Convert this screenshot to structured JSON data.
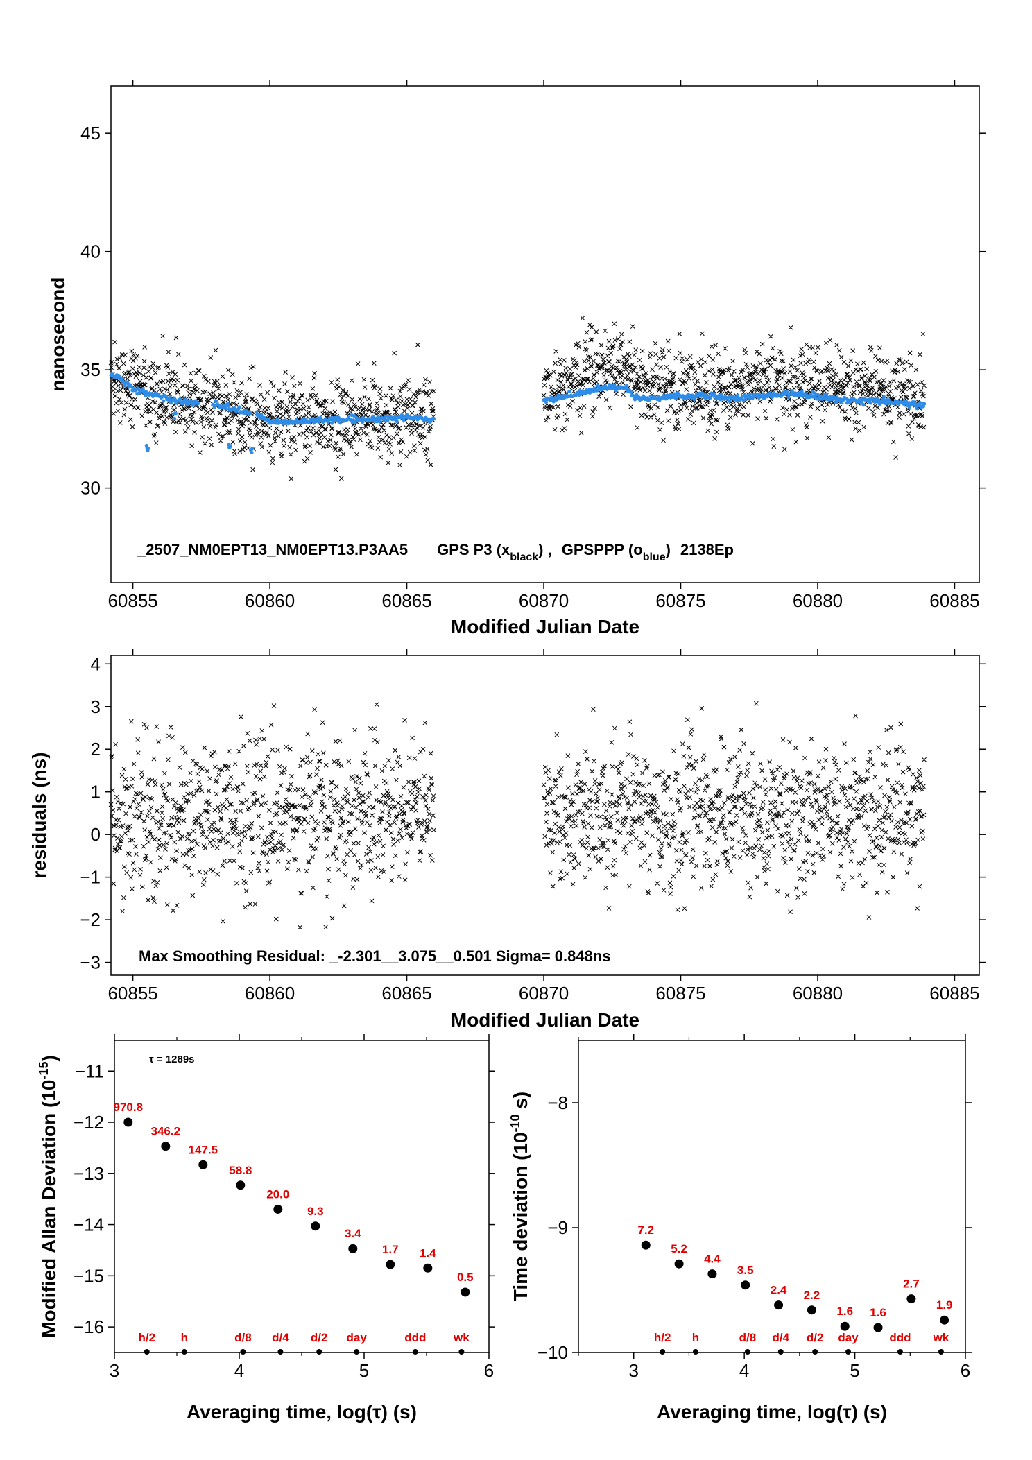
{
  "chart_data": [
    {
      "type": "scatter",
      "xlabel": "Modified Julian Date",
      "ylabel": "nanosecond",
      "xlim": [
        60854.2,
        60885.9
      ],
      "ylim": [
        26,
        47
      ],
      "xticks": [
        60855,
        60860,
        60865,
        60870,
        60875,
        60880,
        60885
      ],
      "yticks": [
        30,
        35,
        40,
        45
      ],
      "grid": false,
      "annotation": {
        "file": "_2507_NM0EPT13_NM0EPT13.P3AA5",
        "gps_label": "GPS P3 (x",
        "gps_sub": "black",
        "sep": ") ,",
        "ppp_label": "GPSPPP (o",
        "ppp_sub": "blue",
        "ppp_end": ")",
        "tail": "2138Ep"
      },
      "series": [
        {
          "name": "GPS P3",
          "color": "#000000",
          "marker": "x",
          "segments": [
            [
              60854.2,
              60866.0
            ],
            [
              60870.0,
              60883.9
            ]
          ],
          "trend": [
            [
              60854.2,
              34.8
            ],
            [
              60855.0,
              34.2
            ],
            [
              60856.0,
              33.7
            ],
            [
              60857.0,
              33.6
            ],
            [
              60858.0,
              33.5
            ],
            [
              60859.0,
              33.2
            ],
            [
              60860.0,
              32.9
            ],
            [
              60862.0,
              32.9
            ],
            [
              60864.0,
              33.0
            ],
            [
              60866.0,
              33.0
            ],
            [
              60870.0,
              33.9
            ],
            [
              60871.0,
              34.5
            ],
            [
              60872.0,
              35.1
            ],
            [
              60873.0,
              34.9
            ],
            [
              60874.0,
              34.3
            ],
            [
              60876.0,
              34.1
            ],
            [
              60878.0,
              34.2
            ],
            [
              60880.0,
              34.3
            ],
            [
              60882.0,
              34.0
            ],
            [
              60883.9,
              33.8
            ]
          ],
          "scatter_sd": 0.85
        },
        {
          "name": "GPSPPP",
          "color": "#2f8de8",
          "marker": "o",
          "curve": [
            [
              60854.2,
              34.8
            ],
            [
              60854.5,
              34.7
            ],
            [
              60855.0,
              34.2
            ],
            [
              60855.5,
              34.0
            ],
            [
              60856.0,
              33.9
            ],
            [
              60856.5,
              33.7
            ],
            [
              60857.0,
              33.6
            ],
            [
              60857.3,
              33.6
            ],
            [
              60858.0,
              33.5
            ],
            [
              60858.5,
              33.4
            ],
            [
              60859.0,
              33.2
            ],
            [
              60859.5,
              33.1
            ],
            [
              60860.0,
              32.8
            ],
            [
              60861.0,
              32.8
            ],
            [
              60862.0,
              32.9
            ],
            [
              60863.0,
              32.9
            ],
            [
              60864.0,
              32.9
            ],
            [
              60865.0,
              33.0
            ],
            [
              60866.0,
              32.9
            ],
            [
              60870.0,
              33.7
            ],
            [
              60871.0,
              33.9
            ],
            [
              60872.0,
              34.2
            ],
            [
              60873.0,
              34.3
            ],
            [
              60873.3,
              33.8
            ],
            [
              60874.0,
              33.8
            ],
            [
              60875.0,
              33.9
            ],
            [
              60876.0,
              33.9
            ],
            [
              60877.0,
              33.8
            ],
            [
              60878.0,
              33.9
            ],
            [
              60879.0,
              34.0
            ],
            [
              60880.0,
              33.9
            ],
            [
              60881.0,
              33.7
            ],
            [
              60882.0,
              33.7
            ],
            [
              60883.0,
              33.6
            ],
            [
              60883.9,
              33.5
            ]
          ],
          "gaps": [
            [
              60857.4,
              60857.9
            ],
            [
              60859.3,
              60859.5
            ]
          ],
          "outliers": [
            [
              60855.5,
              31.7
            ],
            [
              60856.5,
              33.1
            ],
            [
              60858.5,
              31.8
            ],
            [
              60859.3,
              31.6
            ]
          ]
        }
      ]
    },
    {
      "type": "scatter",
      "xlabel": "Modified Julian Date",
      "ylabel": "residuals (ns)",
      "xlim": [
        60854.2,
        60885.9
      ],
      "ylim": [
        -3.3,
        4.2
      ],
      "xticks": [
        60855,
        60860,
        60865,
        60870,
        60875,
        60880,
        60885
      ],
      "yticks": [
        -3,
        -2,
        -1,
        0,
        1,
        2,
        3,
        4
      ],
      "grid": false,
      "annotation": "Max Smoothing Residual: _-2.301__3.075__0.501  Sigma= 0.848ns",
      "series": [
        {
          "name": "residuals",
          "color": "#000000",
          "marker": "x",
          "segments": [
            [
              60854.2,
              60866.0
            ],
            [
              60870.0,
              60883.9
            ]
          ],
          "mean": 0.5,
          "sd": 0.85,
          "min": -2.301,
          "max": 3.075
        }
      ]
    },
    {
      "type": "scatter",
      "xlabel": "Averaging time, log(τ) (s)",
      "ylabel": "Modified Allan Deviation (10",
      "ylabel_sup": "-15",
      "ylabel_end": ")",
      "xlim": [
        3,
        6
      ],
      "ylim": [
        -16.5,
        -10.4
      ],
      "xticks": [
        3,
        4,
        5,
        6
      ],
      "yticks": [
        -11,
        -12,
        -13,
        -14,
        -15,
        -16
      ],
      "annotation": "τ = 1289s",
      "points": [
        {
          "x": 3.11,
          "y": -12.0,
          "label": "970.8"
        },
        {
          "x": 3.41,
          "y": -12.47,
          "label": "346.2"
        },
        {
          "x": 3.71,
          "y": -12.83,
          "label": "147.5"
        },
        {
          "x": 4.01,
          "y": -13.23,
          "label": "58.8"
        },
        {
          "x": 4.31,
          "y": -13.7,
          "label": "20.0"
        },
        {
          "x": 4.61,
          "y": -14.03,
          "label": "9.3"
        },
        {
          "x": 4.91,
          "y": -14.47,
          "label": "3.4"
        },
        {
          "x": 5.21,
          "y": -14.78,
          "label": "1.7"
        },
        {
          "x": 5.51,
          "y": -14.85,
          "label": "1.4"
        },
        {
          "x": 5.81,
          "y": -15.32,
          "label": "0.5"
        }
      ],
      "markers": [
        {
          "x": 3.26,
          "label": "h/2"
        },
        {
          "x": 3.56,
          "label": "h"
        },
        {
          "x": 4.03,
          "label": "d/8"
        },
        {
          "x": 4.33,
          "label": "d/4"
        },
        {
          "x": 4.64,
          "label": "d/2"
        },
        {
          "x": 4.94,
          "label": "day"
        },
        {
          "x": 5.41,
          "label": "ddd"
        },
        {
          "x": 5.78,
          "label": "wk"
        }
      ]
    },
    {
      "type": "scatter",
      "xlabel": "Averaging time, log(τ) (s)",
      "ylabel": "Time deviation (10",
      "ylabel_sup": "-10",
      "ylabel_end": " s)",
      "xlim": [
        2.5,
        6.0
      ],
      "ylim": [
        -10,
        -7.5
      ],
      "xticks": [
        3,
        4,
        5,
        6
      ],
      "yticks": [
        -8,
        -9,
        -10
      ],
      "points": [
        {
          "x": 3.11,
          "y": -9.14,
          "label": "7.2"
        },
        {
          "x": 3.41,
          "y": -9.29,
          "label": "5.2"
        },
        {
          "x": 3.71,
          "y": -9.37,
          "label": "4.4"
        },
        {
          "x": 4.01,
          "y": -9.46,
          "label": "3.5"
        },
        {
          "x": 4.31,
          "y": -9.62,
          "label": "2.4"
        },
        {
          "x": 4.61,
          "y": -9.66,
          "label": "2.2"
        },
        {
          "x": 4.91,
          "y": -9.79,
          "label": "1.6"
        },
        {
          "x": 5.21,
          "y": -9.8,
          "label": "1.6"
        },
        {
          "x": 5.51,
          "y": -9.57,
          "label": "2.7"
        },
        {
          "x": 5.81,
          "y": -9.74,
          "label": "1.9"
        }
      ],
      "markers": [
        {
          "x": 3.26,
          "label": "h/2"
        },
        {
          "x": 3.56,
          "label": "h"
        },
        {
          "x": 4.03,
          "label": "d/8"
        },
        {
          "x": 4.33,
          "label": "d/4"
        },
        {
          "x": 4.64,
          "label": "d/2"
        },
        {
          "x": 4.94,
          "label": "day"
        },
        {
          "x": 5.41,
          "label": "ddd"
        },
        {
          "x": 5.78,
          "label": "wk"
        }
      ]
    }
  ]
}
